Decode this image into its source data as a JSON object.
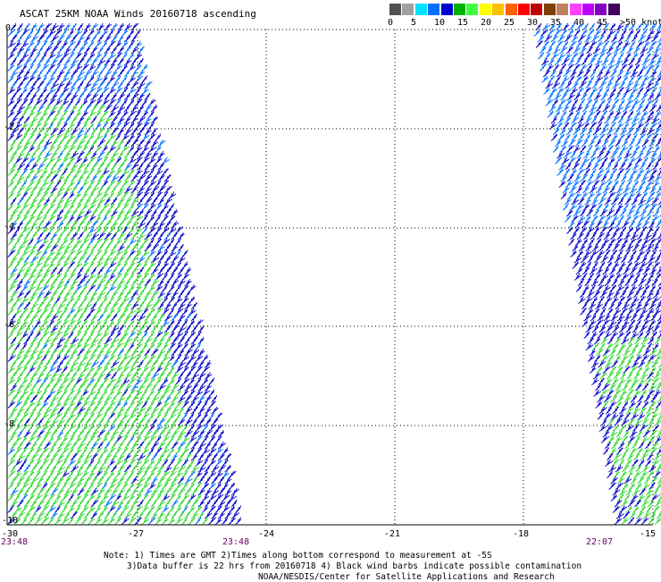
{
  "title": "ASCAT 25KM NOAA Winds 20160718 ascending",
  "legend": {
    "colors": [
      "#505050",
      "#a0a0a0",
      "#00e0ff",
      "#0070ff",
      "#0000d0",
      "#00b000",
      "#40ff40",
      "#ffff00",
      "#ffc000",
      "#ff6000",
      "#ff0000",
      "#c00000",
      "#804000",
      "#c08060",
      "#ff40ff",
      "#c000ff",
      "#8000c0",
      "#400060"
    ],
    "labels": [
      "0",
      "5",
      "10",
      "15",
      "20",
      "25",
      "30",
      "35",
      "40",
      "45",
      ">50 knots"
    ]
  },
  "axes": {
    "x_ticks": [
      "-30",
      "-27",
      "-24",
      "-21",
      "-18",
      "-15"
    ],
    "y_ticks": [
      "0",
      "-2",
      "-4",
      "-6",
      "-8",
      "-10"
    ]
  },
  "pass_times": {
    "left_start": "23:48",
    "left_end": "23:48",
    "right": "22:07"
  },
  "notes": {
    "line1": "Note: 1) Times are GMT 2)Times along bottom correspond to measurement at -5S",
    "line2": "3)Data buffer is 22 hrs from 20160718 4) Black wind barbs indicate possible contamination",
    "line3": "NOAA/NESDIS/Center for Satellite Applications and Research"
  },
  "barb_colors": {
    "blue": "#0000c8",
    "mid_blue": "#0070ff",
    "green": "#30d830"
  }
}
